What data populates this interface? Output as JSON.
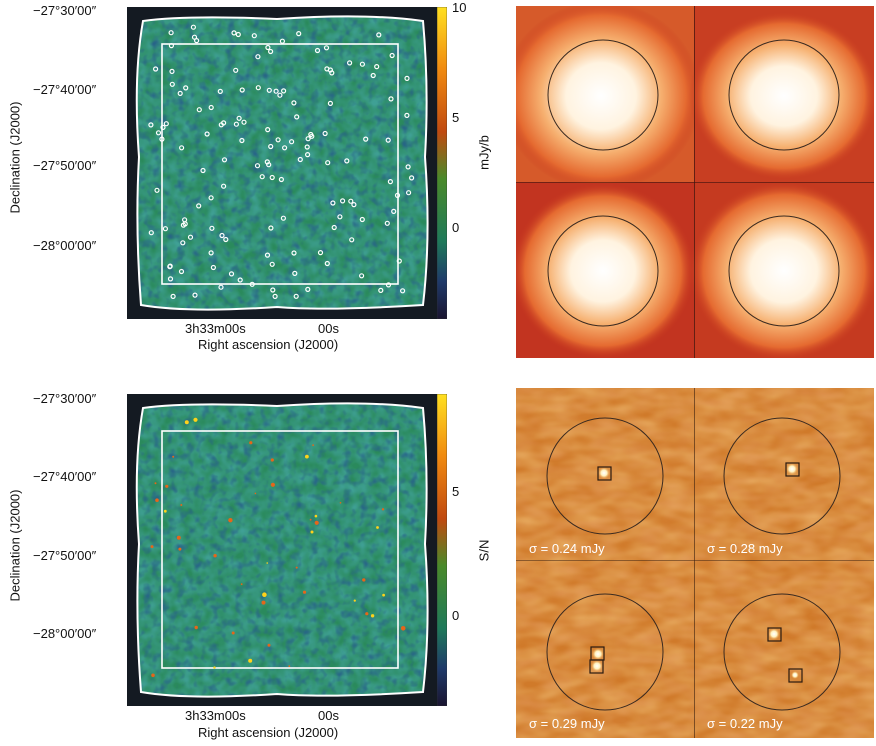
{
  "top": {
    "y_ticks": [
      "−27°30′00″",
      "−27°40′00″",
      "−27°50′00″",
      "−28°00′00″"
    ],
    "x_ticks": [
      "3h33m00s",
      "00s"
    ],
    "x_label": "Right ascension (J2000)",
    "y_label": "Declination (J2000)",
    "colorbar_ticks": [
      "10",
      "5",
      "0"
    ],
    "colorbar_label": "mJy/b"
  },
  "bottom": {
    "y_ticks": [
      "−27°30′00″",
      "−27°40′00″",
      "−27°50′00″",
      "−28°00′00″"
    ],
    "x_ticks": [
      "3h33m00s",
      "00s"
    ],
    "x_label": "Right ascension (J2000)",
    "y_label": "Declination (J2000)",
    "colorbar_ticks": [
      "5",
      "0"
    ],
    "colorbar_label": "S/N"
  },
  "stamps": {
    "sigma_labels": [
      "σ = 0.24 mJy",
      "σ = 0.28 mJy",
      "σ = 0.29 mJy",
      "σ = 0.22 mJy"
    ]
  },
  "colors": {
    "map_background": "#1f6a4a",
    "stack_bg": "#b8281a",
    "stamp_bg": "#d07a2a"
  }
}
